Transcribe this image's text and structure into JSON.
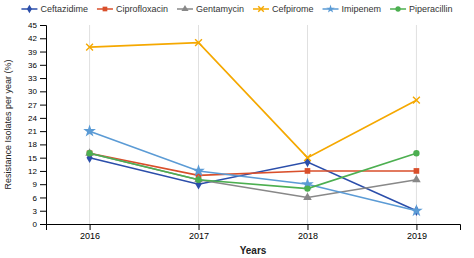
{
  "chart_data": {
    "type": "line",
    "xlabel": "Years",
    "ylabel": "Resistance Isolates per year (%)",
    "x": [
      2016,
      2017,
      2018,
      2019
    ],
    "series": [
      {
        "name": "Ceftazidime",
        "color": "#2B4EAA",
        "marker": "diamond",
        "values": [
          15,
          9,
          14,
          3
        ]
      },
      {
        "name": "Ciprofloxacin",
        "color": "#D94F2B",
        "marker": "square",
        "values": [
          16,
          11,
          12,
          12
        ]
      },
      {
        "name": "Gentamycin",
        "color": "#888888",
        "marker": "triangle",
        "values": [
          16,
          10,
          6,
          10
        ]
      },
      {
        "name": "Cefpirome",
        "color": "#F5A800",
        "marker": "cross",
        "values": [
          40,
          41,
          15,
          28
        ]
      },
      {
        "name": "Imipenem",
        "color": "#5B9BD5",
        "marker": "star",
        "values": [
          21,
          12,
          9,
          3
        ]
      },
      {
        "name": "Piperacillin",
        "color": "#4CAF50",
        "marker": "circle",
        "values": [
          16,
          10,
          8,
          16
        ]
      }
    ],
    "xlim": [
      2015.6,
      2019.4
    ],
    "xticks": [
      2016,
      2017,
      2018,
      2019
    ],
    "ylim": [
      0,
      45
    ],
    "yticks": [
      0,
      3,
      6,
      9,
      12,
      15,
      18,
      21,
      24,
      27,
      30,
      33,
      36,
      39,
      42,
      45
    ],
    "grid": "x",
    "legend": "top"
  }
}
